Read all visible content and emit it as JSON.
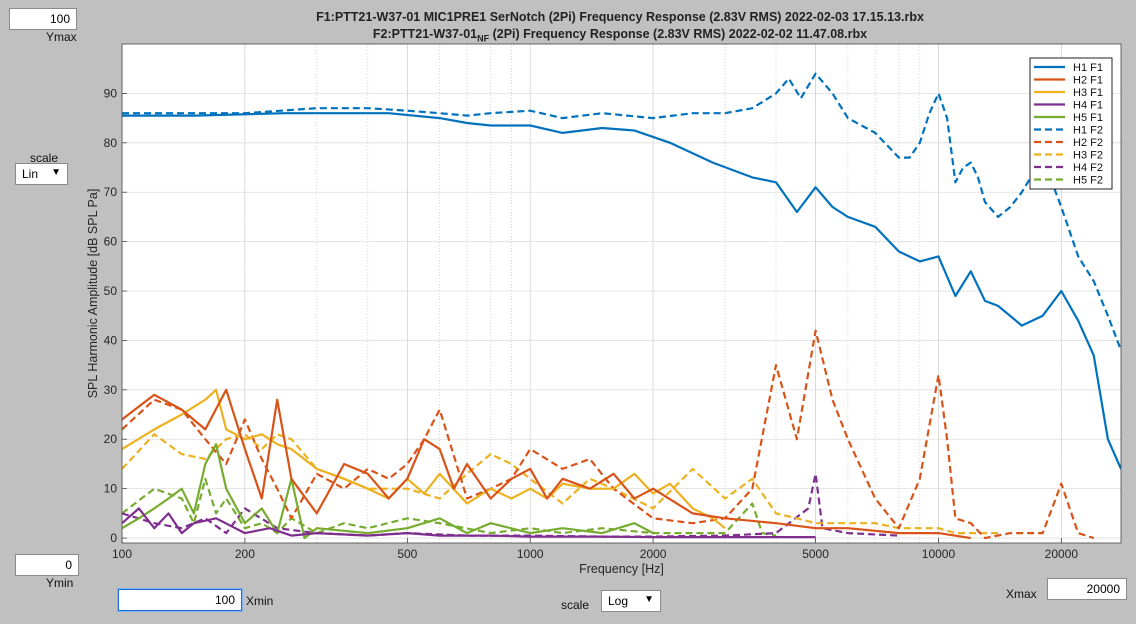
{
  "title": {
    "line1": "F1:PTT21-W37-01 MIC1PRE1 SerNotch (2Pi) Frequency Response (2.83V RMS) 2022-02-03 17.15.13.rbx",
    "line2_pre": "F2:PTT21-W37-01",
    "line2_sub": "NF",
    "line2_post": " (2Pi) Frequency Response (2.83V RMS) 2022-02-02 11.47.08.rbx"
  },
  "controls": {
    "ymax_value": "100",
    "ymax_label": "Ymax",
    "ymin_value": "0",
    "ymin_label": "Ymin",
    "xmin_value": "100",
    "xmin_label": "Xmin",
    "xmax_value": "20000",
    "xmax_label": "Xmax",
    "yscale_label": "scale",
    "yscale_value": "Lin",
    "xscale_label": "scale",
    "xscale_value": "Log",
    "dropdown_arrow": "▼"
  },
  "colors": {
    "H1": "#0072bd",
    "H2": "#d95319",
    "H3": "#edb120",
    "H4": "#7e2f8e",
    "H5": "#77ac30"
  },
  "chart_data": {
    "type": "line",
    "xlabel": "Frequency [Hz]",
    "ylabel": "SPL Harmonic Amplitude [dB SPL Pa]",
    "xscale": "log",
    "xlim": [
      100,
      28000
    ],
    "ylim": [
      -1,
      100
    ],
    "grid": true,
    "legend_position": "top-right",
    "x_ticks": [
      100,
      200,
      500,
      1000,
      2000,
      5000,
      10000,
      20000
    ],
    "x_tick_labels": [
      "100",
      "200",
      "500",
      "1000",
      "2000",
      "5000",
      "10000",
      "20000"
    ],
    "y_ticks": [
      0,
      10,
      20,
      30,
      40,
      50,
      60,
      70,
      80,
      90
    ],
    "y_tick_labels": [
      "0",
      "10",
      "20",
      "30",
      "40",
      "50",
      "60",
      "70",
      "80",
      "90"
    ],
    "series": [
      {
        "name": "H1 F1",
        "color": "#0072bd",
        "dash": false,
        "x": [
          100,
          150,
          250,
          350,
          450,
          600,
          700,
          800,
          1000,
          1200,
          1500,
          1800,
          2200,
          2800,
          3500,
          4000,
          4500,
          5000,
          5500,
          6000,
          7000,
          8000,
          9000,
          10000,
          11000,
          12000,
          13000,
          14000,
          16000,
          18000,
          20000,
          22000,
          24000,
          26000,
          28000
        ],
        "y": [
          85.5,
          85.5,
          86,
          86,
          86,
          85,
          84,
          83.5,
          83.5,
          82,
          83,
          82.5,
          80,
          76,
          73,
          72,
          66,
          71,
          67,
          65,
          63,
          58,
          56,
          57,
          49,
          54,
          48,
          47,
          43,
          45,
          50,
          44,
          37,
          20,
          14
        ]
      },
      {
        "name": "H2 F1",
        "color": "#d95319",
        "dash": false,
        "x": [
          100,
          120,
          140,
          160,
          180,
          200,
          220,
          240,
          260,
          300,
          350,
          400,
          450,
          500,
          550,
          600,
          650,
          700,
          800,
          900,
          1000,
          1100,
          1200,
          1400,
          1600,
          1800,
          2000,
          2500,
          3000,
          4000,
          5000,
          6000,
          8000,
          10000,
          12000
        ],
        "y": [
          24,
          29,
          26,
          22,
          30,
          18,
          8,
          28,
          12,
          5,
          15,
          13,
          8,
          12,
          20,
          18,
          10,
          15,
          8,
          12,
          14,
          8,
          12,
          10,
          13,
          8,
          10,
          5,
          4,
          3,
          2,
          2,
          1,
          1,
          0
        ]
      },
      {
        "name": "H3 F1",
        "color": "#edb120",
        "dash": false,
        "x": [
          100,
          120,
          140,
          160,
          170,
          180,
          200,
          220,
          240,
          260,
          300,
          350,
          400,
          450,
          500,
          550,
          600,
          700,
          800,
          900,
          1000,
          1100,
          1200,
          1400,
          1600,
          1800,
          2000,
          2200,
          2500,
          2800,
          3000
        ],
        "y": [
          18,
          22,
          25,
          28,
          30,
          22,
          20,
          21,
          19,
          18,
          14,
          12,
          10,
          8,
          12,
          9,
          13,
          7,
          10,
          8,
          10,
          8,
          11,
          10,
          10,
          13,
          9,
          11,
          6,
          4,
          2
        ]
      },
      {
        "name": "H4 F1",
        "color": "#7e2f8e",
        "dash": false,
        "x": [
          100,
          110,
          120,
          130,
          140,
          150,
          170,
          200,
          230,
          260,
          300,
          400,
          500,
          600,
          800,
          1000,
          1500,
          2000,
          3000,
          5000
        ],
        "y": [
          3,
          6,
          2,
          5,
          1,
          3,
          4,
          1,
          2,
          0.5,
          1,
          0.5,
          1,
          0.5,
          0.5,
          0.3,
          0.3,
          0.2,
          0.2,
          0.2
        ]
      },
      {
        "name": "H5 F1",
        "color": "#77ac30",
        "dash": false,
        "x": [
          100,
          110,
          120,
          130,
          140,
          150,
          160,
          170,
          180,
          200,
          220,
          240,
          260,
          280,
          300,
          400,
          500,
          600,
          700,
          800,
          1000,
          1200,
          1500,
          1800,
          2000
        ],
        "y": [
          2,
          4,
          6,
          8,
          10,
          5,
          15,
          19,
          10,
          3,
          6,
          1,
          12,
          0,
          2,
          1,
          2,
          4,
          1,
          3,
          1,
          2,
          1,
          3,
          1
        ]
      },
      {
        "name": "H1 F2",
        "color": "#0072bd",
        "dash": true,
        "x": [
          100,
          200,
          300,
          400,
          500,
          600,
          700,
          800,
          1000,
          1200,
          1500,
          2000,
          2500,
          3000,
          3500,
          4000,
          4300,
          4600,
          5000,
          5500,
          6000,
          7000,
          8000,
          8500,
          9000,
          9500,
          10000,
          10500,
          11000,
          11500,
          12000,
          12500,
          13000,
          14000,
          15000,
          16000,
          18000,
          20000,
          22000,
          24000,
          26000,
          28000
        ],
        "y": [
          86,
          86,
          87,
          87,
          86.5,
          86,
          85.5,
          86,
          86.5,
          85,
          86,
          85,
          86,
          86,
          87,
          90,
          93,
          89,
          94,
          90,
          85,
          82,
          77,
          77,
          80,
          86,
          90,
          85,
          72,
          75,
          76,
          73,
          68,
          65,
          67,
          70,
          77,
          67,
          57,
          52,
          45,
          38
        ]
      },
      {
        "name": "H2 F2",
        "color": "#d95319",
        "dash": true,
        "x": [
          100,
          120,
          140,
          160,
          180,
          200,
          220,
          240,
          260,
          300,
          350,
          400,
          450,
          500,
          550,
          600,
          700,
          800,
          900,
          1000,
          1200,
          1400,
          1600,
          2000,
          2500,
          3000,
          3500,
          4000,
          4500,
          5000,
          5500,
          6000,
          7000,
          8000,
          9000,
          10000,
          10500,
          11000,
          12000,
          13000,
          15000,
          18000,
          20000,
          22000,
          24000
        ],
        "y": [
          22,
          28,
          26,
          20,
          15,
          24,
          16,
          10,
          4,
          13,
          10,
          14,
          12,
          15,
          20,
          26,
          8,
          10,
          12,
          18,
          14,
          16,
          10,
          4,
          3,
          4,
          10,
          35,
          20,
          42,
          28,
          20,
          8,
          2,
          12,
          33,
          20,
          4,
          3,
          0,
          1,
          1,
          11,
          1,
          0
        ]
      },
      {
        "name": "H3 F2",
        "color": "#edb120",
        "dash": true,
        "x": [
          100,
          120,
          140,
          160,
          180,
          200,
          220,
          240,
          260,
          300,
          350,
          400,
          450,
          500,
          600,
          700,
          800,
          900,
          1000,
          1200,
          1400,
          1600,
          2000,
          2500,
          3000,
          3500,
          4000,
          4500,
          5000,
          5500,
          6000,
          7000,
          8000,
          9000,
          10000,
          11000,
          12000,
          14000
        ],
        "y": [
          14,
          21,
          17,
          16,
          20,
          21,
          18,
          21,
          20,
          14,
          12,
          10,
          10,
          10,
          8,
          13,
          17,
          15,
          12,
          7,
          12,
          10,
          6,
          14,
          8,
          12,
          5,
          4,
          3,
          3,
          3,
          3,
          2,
          2,
          2,
          1,
          1,
          1
        ]
      },
      {
        "name": "H4 F2",
        "color": "#7e2f8e",
        "dash": true,
        "x": [
          100,
          120,
          140,
          160,
          180,
          200,
          240,
          300,
          400,
          500,
          700,
          1000,
          1500,
          2000,
          3000,
          4000,
          4800,
          5000,
          5200,
          6000,
          8000
        ],
        "y": [
          5,
          3,
          2,
          4,
          1,
          6,
          2,
          1,
          0.5,
          1,
          0.5,
          0.5,
          0.3,
          0.3,
          0.5,
          1,
          6,
          13,
          2,
          1,
          0.5
        ]
      },
      {
        "name": "H5 F2",
        "color": "#77ac30",
        "dash": true,
        "x": [
          100,
          120,
          140,
          150,
          160,
          170,
          180,
          200,
          220,
          240,
          260,
          300,
          350,
          400,
          500,
          600,
          800,
          1000,
          1200,
          1500,
          2000,
          3000,
          3500,
          3700,
          4000
        ],
        "y": [
          5,
          10,
          8,
          3,
          12,
          5,
          8,
          2,
          3,
          1,
          4,
          1,
          3,
          2,
          4,
          3,
          1,
          2,
          1,
          2,
          1,
          1,
          7,
          1,
          0.5
        ]
      }
    ]
  }
}
